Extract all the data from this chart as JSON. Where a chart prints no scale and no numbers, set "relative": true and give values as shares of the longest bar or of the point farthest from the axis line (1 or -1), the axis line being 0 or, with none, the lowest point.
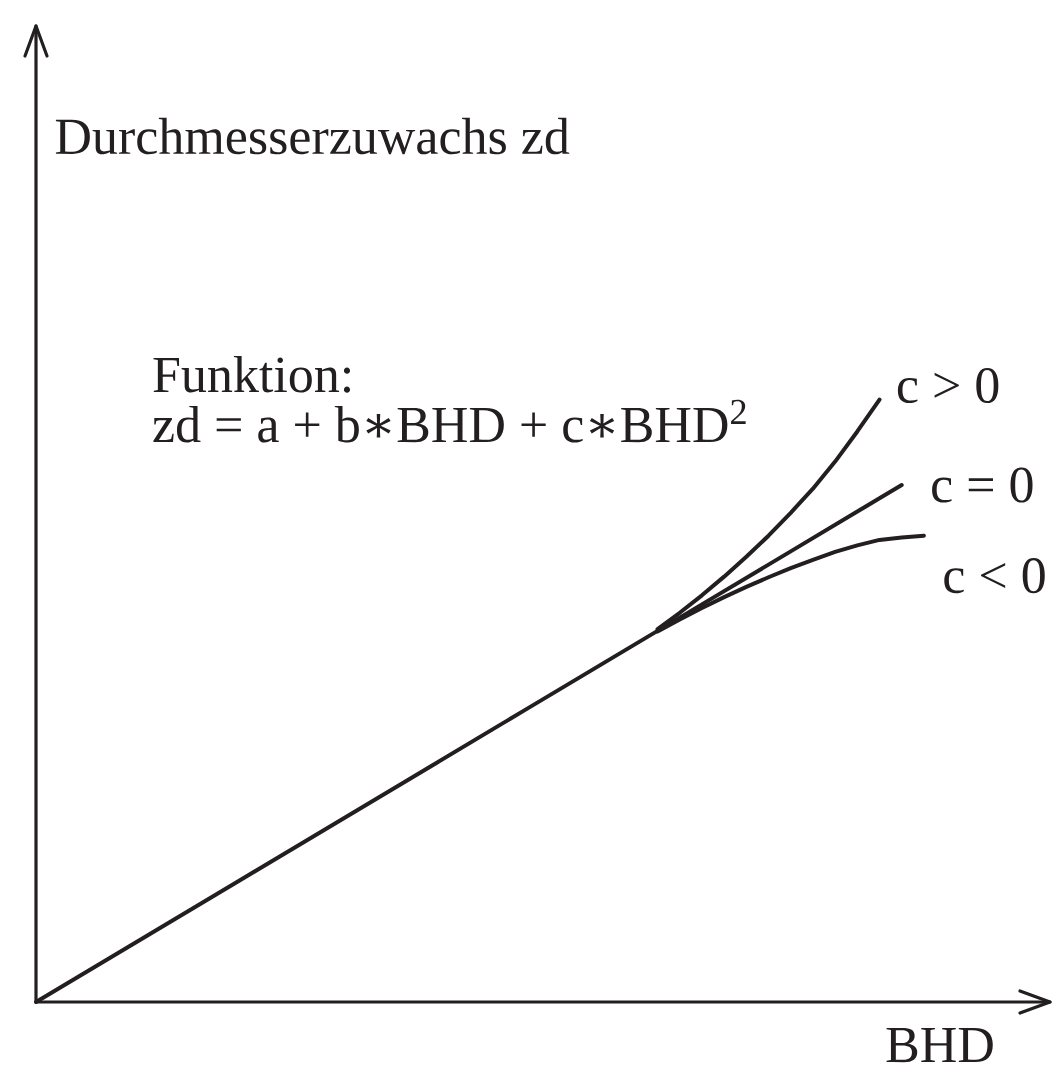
{
  "chart_data": {
    "type": "line",
    "relative": true,
    "ylabel": "Durchmesserzuwachs zd",
    "xlabel": "BHD",
    "annotations": [
      "Funktion:",
      "zd = a + b∗BHD + c∗BHD$^{2}$"
    ],
    "categories": [
      null,
      null,
      null,
      null,
      null,
      null,
      null,
      null,
      null,
      null,
      null,
      null,
      null,
      null,
      null,
      null,
      null,
      null,
      null,
      null,
      null,
      null,
      null,
      null,
      null,
      null,
      null,
      null,
      null,
      null,
      null,
      null,
      null,
      null,
      null,
      null,
      null,
      null,
      null,
      null,
      null
    ],
    "series": [
      {
        "name": "c > 0",
        "color": "#231f20",
        "values": [
          null,
          null,
          null,
          null,
          null,
          null,
          null,
          null,
          null,
          null,
          null,
          null,
          null,
          null,
          null,
          null,
          null,
          null,
          null,
          null,
          null,
          null,
          null,
          null,
          null,
          null,
          null,
          null,
          0.619,
          0.646,
          0.675,
          0.706,
          0.739,
          0.774,
          0.812,
          0.852,
          0.897,
          0.947,
          1.0,
          null,
          null
        ]
      },
      {
        "name": "c = 0",
        "color": "#231f20",
        "values": [
          0,
          0.022,
          0.044,
          0.066,
          0.088,
          0.11,
          0.132,
          0.154,
          0.176,
          0.198,
          0.22,
          0.242,
          0.264,
          0.286,
          0.308,
          0.33,
          0.352,
          0.374,
          0.396,
          0.418,
          0.44,
          0.462,
          0.484,
          0.506,
          0.528,
          0.55,
          0.572,
          0.594,
          0.616,
          0.638,
          0.66,
          0.682,
          0.704,
          0.726,
          0.748,
          0.77,
          0.792,
          0.814,
          0.836,
          0.858,
          null
        ]
      },
      {
        "name": "c < 0",
        "color": "#231f20",
        "values": [
          null,
          null,
          null,
          null,
          null,
          null,
          null,
          null,
          null,
          null,
          null,
          null,
          null,
          null,
          null,
          null,
          null,
          null,
          null,
          null,
          null,
          null,
          null,
          null,
          null,
          null,
          null,
          null,
          0.615,
          0.635,
          0.654,
          0.672,
          0.689,
          0.705,
          0.72,
          0.734,
          0.747,
          0.758,
          0.767,
          0.771,
          0.774
        ]
      }
    ],
    "legend": false,
    "marker": "none",
    "line_style": "solid"
  }
}
